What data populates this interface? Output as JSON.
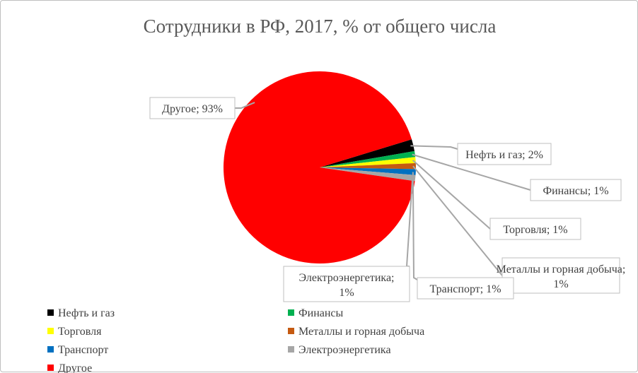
{
  "chart_data": {
    "type": "pie",
    "title": "Сотрудники в РФ, 2017, % от общего числа",
    "label_separator": "; ",
    "slices": [
      {
        "name": "Нефть и газ",
        "value": 2,
        "label": "2%",
        "color": "#000000"
      },
      {
        "name": "Финансы",
        "value": 1,
        "label": "1%",
        "color": "#00b050"
      },
      {
        "name": "Торговля",
        "value": 1,
        "label": "1%",
        "color": "#ffff00"
      },
      {
        "name": "Металлы и горная добыча",
        "value": 1,
        "label": "1%",
        "color": "#c55a11"
      },
      {
        "name": "Транспорт",
        "value": 1,
        "label": "1%",
        "color": "#0070c0"
      },
      {
        "name": "Электроэнергетика",
        "value": 1,
        "label": "1%",
        "color": "#a6a6a6"
      },
      {
        "name": "Другое",
        "value": 93,
        "label": "93%",
        "color": "#ff0000"
      }
    ],
    "legend_position": "bottom"
  }
}
